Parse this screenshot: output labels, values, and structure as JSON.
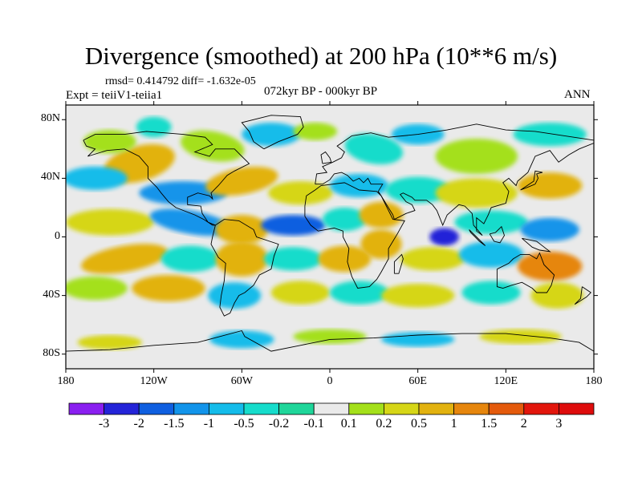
{
  "figure": {
    "title": "Divergence (smoothed) at 200 hPa (10**6 m/s)",
    "stats": "rmsd= 0.414792 diff= -1.632e-05",
    "experiment": "Expt = teiiV1-teiia1",
    "period": "072kyr BP - 000kyr BP",
    "season": "ANN"
  },
  "map": {
    "projection": "cylindrical equidistant",
    "lon_range": [
      -180,
      180
    ],
    "lat_range": [
      -90,
      90
    ],
    "y_ticks": [
      {
        "label": "80N",
        "lat": 80
      },
      {
        "label": "40N",
        "lat": 40
      },
      {
        "label": "0",
        "lat": 0
      },
      {
        "label": "40S",
        "lat": -40
      },
      {
        "label": "80S",
        "lat": -80
      }
    ],
    "x_ticks": [
      {
        "label": "180",
        "lon": -180
      },
      {
        "label": "120W",
        "lon": -120
      },
      {
        "label": "60W",
        "lon": -60
      },
      {
        "label": "0",
        "lon": 0
      },
      {
        "label": "60E",
        "lon": 60
      },
      {
        "label": "120E",
        "lon": 120
      },
      {
        "label": "180",
        "lon": 180
      }
    ],
    "features": [
      {
        "name": "strong-negative-indian-ocean",
        "lon": 78,
        "lat": 0,
        "level": -2.2
      },
      {
        "name": "negative-east-pacific",
        "lon": -95,
        "lat": 5,
        "level": -0.8
      },
      {
        "name": "negative-central-atlantic",
        "lon": -20,
        "lat": 5,
        "level": -1.2
      },
      {
        "name": "positive-south-america",
        "lon": -60,
        "lat": -10,
        "level": 0.8
      },
      {
        "name": "positive-africa",
        "lon": 30,
        "lat": -5,
        "level": 0.7
      },
      {
        "name": "positive-west-pacific",
        "lon": 150,
        "lat": -15,
        "level": 1.2
      }
    ]
  },
  "colorbar": {
    "labels": [
      "-3",
      "-2",
      "-1.5",
      "-1",
      "-0.5",
      "-0.2",
      "-0.1",
      "0.1",
      "0.2",
      "0.5",
      "1",
      "1.5",
      "2",
      "3"
    ],
    "colors": [
      "#8a1ff0",
      "#2424d8",
      "#0f5fe0",
      "#1294ea",
      "#14bcea",
      "#16dccb",
      "#1fd69a",
      "#eaeaea",
      "#a4e01a",
      "#d6d617",
      "#e2b20f",
      "#e6860d",
      "#e45a0c",
      "#e2160c",
      "#de0c0c"
    ]
  }
}
